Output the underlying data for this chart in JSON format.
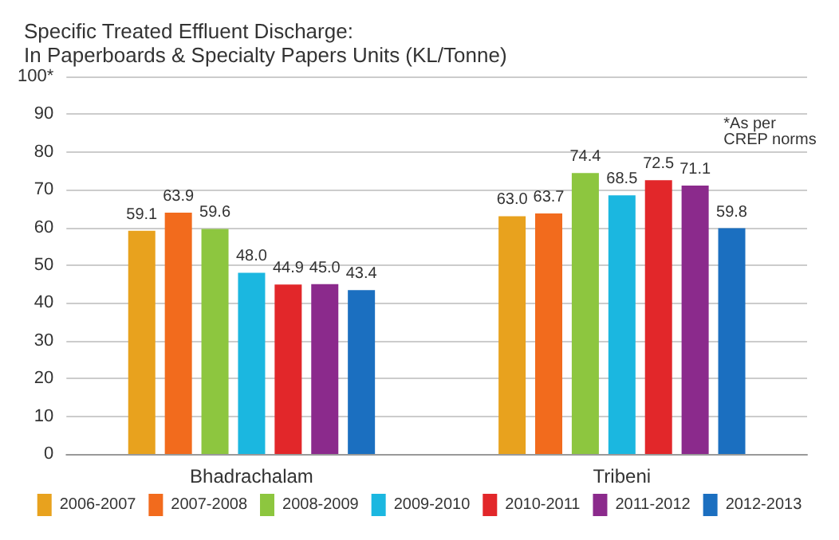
{
  "chart_data": {
    "type": "bar",
    "title": "Specific Treated Effluent Discharge:",
    "subtitle": "In Paperboards & Specialty Papers Units (KL/Tonne)",
    "categories": [
      "Bhadrachalam",
      "Tribeni"
    ],
    "series": [
      {
        "name": "2006-2007",
        "color": "#e8a21e",
        "values": [
          59.1,
          63.0
        ],
        "value_labels": [
          "59.1",
          "63.0"
        ]
      },
      {
        "name": "2007-2008",
        "color": "#f26b1d",
        "values": [
          63.9,
          63.7
        ],
        "value_labels": [
          "63.9",
          "63.7"
        ]
      },
      {
        "name": "2008-2009",
        "color": "#8dc63f",
        "values": [
          59.6,
          74.4
        ],
        "value_labels": [
          "59.6",
          "74.4"
        ]
      },
      {
        "name": "2009-2010",
        "color": "#1bb7e0",
        "values": [
          48.0,
          68.5
        ],
        "value_labels": [
          "48.0",
          "68.5"
        ]
      },
      {
        "name": "2010-2011",
        "color": "#e2272a",
        "values": [
          44.9,
          72.5
        ],
        "value_labels": [
          "44.9",
          "72.5"
        ]
      },
      {
        "name": "2011-2012",
        "color": "#8b2a8c",
        "values": [
          45.0,
          71.1
        ],
        "value_labels": [
          "45.0",
          "71.1"
        ]
      },
      {
        "name": "2012-2013",
        "color": "#1b6fc0",
        "values": [
          43.4,
          59.8
        ],
        "value_labels": [
          "43.4",
          "59.8"
        ]
      }
    ],
    "ylim": [
      0,
      100
    ],
    "yticks": [
      0,
      10,
      20,
      30,
      40,
      50,
      60,
      70,
      80,
      90,
      {
        "value": 100,
        "label": "100*"
      }
    ],
    "annotations": [
      "*As per\nCREP norms"
    ],
    "grid": "y",
    "legend": "bottom"
  }
}
